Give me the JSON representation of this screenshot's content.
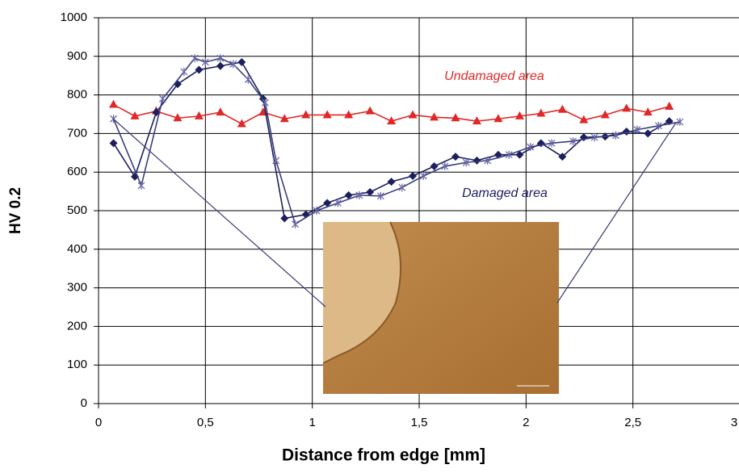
{
  "chart_data": {
    "type": "line",
    "xlabel": "Distance from edge [mm]",
    "ylabel": "HV 0.2",
    "annotations": [
      "Undamaged area",
      "Damaged area"
    ],
    "xlim": [
      0,
      3
    ],
    "xticks": [
      0,
      {
        "value": 0.5,
        "label": "0,5"
      },
      1,
      {
        "value": 1.5,
        "label": "1,5"
      },
      2,
      {
        "value": 2.5,
        "label": "2,5"
      },
      3
    ],
    "ylim": [
      0,
      1000
    ],
    "yticks": [
      0,
      100,
      200,
      300,
      400,
      500,
      600,
      700,
      800,
      900,
      1000
    ],
    "grid": true,
    "series": [
      {
        "color": "#e02828",
        "marker": "triangle",
        "x": [
          0.07,
          0.17,
          0.27,
          0.37,
          0.47,
          0.57,
          0.67,
          0.77,
          0.87,
          0.97,
          1.07,
          1.17,
          1.27,
          1.37,
          1.47,
          1.57,
          1.67,
          1.77,
          1.87,
          1.97,
          2.07,
          2.17,
          2.27,
          2.37,
          2.47,
          2.57,
          2.67
        ],
        "values": [
          775,
          745,
          758,
          740,
          745,
          755,
          725,
          755,
          738,
          748,
          748,
          748,
          758,
          732,
          748,
          742,
          740,
          732,
          738,
          745,
          752,
          762,
          735,
          748,
          765,
          755,
          770
        ]
      },
      {
        "color": "#1c1f5e",
        "marker": "diamond",
        "x": [
          0.07,
          0.17,
          0.27,
          0.37,
          0.47,
          0.57,
          0.67,
          0.77,
          0.87,
          0.97,
          1.07,
          1.17,
          1.27,
          1.37,
          1.47,
          1.57,
          1.67,
          1.77,
          1.87,
          1.97,
          2.07,
          2.17,
          2.27,
          2.37,
          2.47,
          2.57,
          2.67
        ],
        "values": [
          675,
          588,
          755,
          828,
          865,
          875,
          885,
          790,
          480,
          490,
          520,
          540,
          548,
          575,
          590,
          615,
          640,
          630,
          645,
          645,
          675,
          640,
          690,
          692,
          705,
          700,
          732
        ]
      },
      {
        "color": "#3a3d7a",
        "marker": "star",
        "x": [
          0.07,
          0.2,
          0.3,
          0.4,
          0.45,
          0.5,
          0.57,
          0.63,
          0.7,
          0.78,
          0.83,
          0.92,
          1.02,
          1.12,
          1.22,
          1.32,
          1.42,
          1.52,
          1.62,
          1.72,
          1.82,
          1.92,
          2.02,
          2.12,
          2.22,
          2.32,
          2.42,
          2.52,
          2.62,
          2.72
        ],
        "values": [
          738,
          565,
          790,
          860,
          895,
          885,
          895,
          880,
          840,
          780,
          630,
          465,
          500,
          520,
          540,
          538,
          560,
          590,
          615,
          625,
          630,
          645,
          665,
          675,
          680,
          690,
          695,
          710,
          720,
          730
        ]
      }
    ]
  }
}
